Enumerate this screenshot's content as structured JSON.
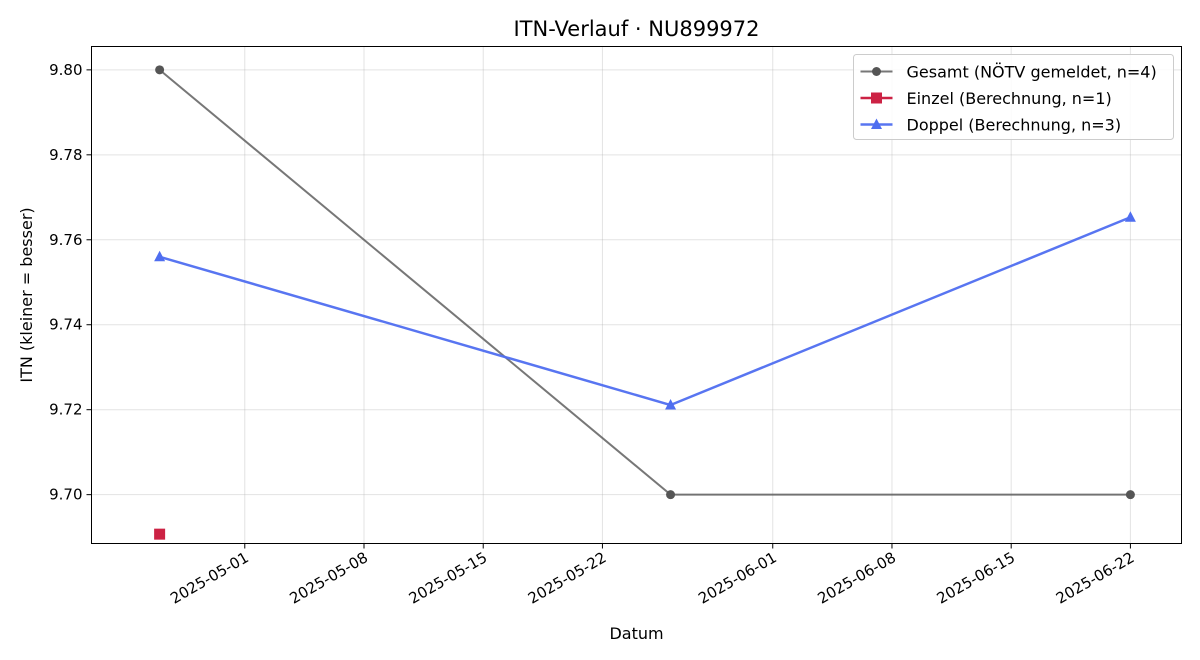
{
  "chart_data": {
    "type": "line",
    "title": "ITN-Verlauf · NU899972",
    "xlabel": "Datum",
    "ylabel": "ITN  (kleiner = besser)",
    "x_type": "date",
    "xlim": [
      "2025-04-22",
      "2025-06-25"
    ],
    "ylim": [
      9.6885,
      9.8055
    ],
    "x_ticks": [
      "2025-05-01",
      "2025-05-08",
      "2025-05-15",
      "2025-05-22",
      "2025-06-01",
      "2025-06-08",
      "2025-06-15",
      "2025-06-22"
    ],
    "y_ticks": [
      "9.70",
      "9.72",
      "9.74",
      "9.76",
      "9.78",
      "9.80"
    ],
    "grid": true,
    "legend_position": "top-right",
    "series": [
      {
        "name": "Gesamt (NÖTV gemeldet, n=4)",
        "color": "#555555",
        "marker": "circle",
        "points": [
          {
            "x": "2025-04-26",
            "y": 9.8
          },
          {
            "x": "2025-05-26",
            "y": 9.7
          },
          {
            "x": "2025-06-22",
            "y": 9.7
          }
        ]
      },
      {
        "name": "Einzel (Berechnung, n=1)",
        "color": "#cc2244",
        "marker": "square",
        "points": [
          {
            "x": "2025-04-26",
            "y": 9.6907
          }
        ]
      },
      {
        "name": "Doppel (Berechnung, n=3)",
        "color": "#4f6ef0",
        "marker": "triangle",
        "points": [
          {
            "x": "2025-04-26",
            "y": 9.756
          },
          {
            "x": "2025-05-26",
            "y": 9.7211
          },
          {
            "x": "2025-06-22",
            "y": 9.7653
          }
        ]
      }
    ]
  }
}
